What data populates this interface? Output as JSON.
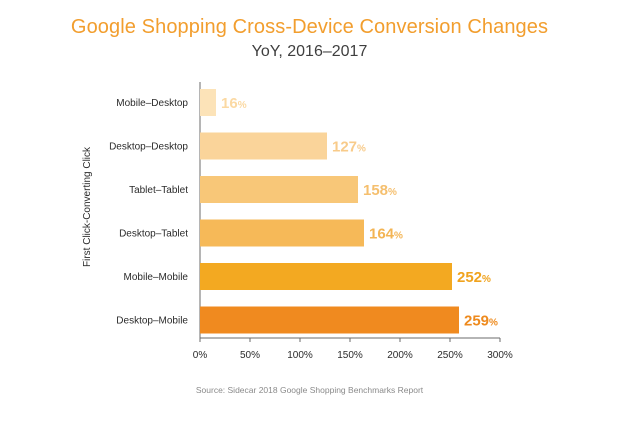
{
  "chart_data": {
    "type": "bar",
    "orientation": "horizontal",
    "title": "Google Shopping Cross-Device Conversion Changes",
    "subtitle": "YoY, 2016–2017",
    "ylabel": "First Click-Converting Click",
    "xlabel": "",
    "categories": [
      "Mobile–Desktop",
      "Desktop–Desktop",
      "Tablet–Tablet",
      "Desktop–Tablet",
      "Mobile–Mobile",
      "Desktop–Mobile"
    ],
    "values": [
      16,
      127,
      158,
      164,
      252,
      259
    ],
    "value_suffix": "%",
    "bar_colors": [
      "#fce3b8",
      "#fad49a",
      "#f8c778",
      "#f6b958",
      "#f3a921",
      "#f08a1f"
    ],
    "label_colors": [
      "#fbd9a3",
      "#f8cb8a",
      "#f5bf6e",
      "#f3b453",
      "#f0a31e",
      "#ee8a1d"
    ],
    "xlim": [
      0,
      300
    ],
    "xticks": [
      "0%",
      "50%",
      "100%",
      "150%",
      "200%",
      "250%",
      "300%"
    ],
    "xtick_values": [
      0,
      50,
      100,
      150,
      200,
      250,
      300
    ],
    "grid": false,
    "source": "Source: Sidecar 2018 Google Shopping Benchmarks Report"
  }
}
